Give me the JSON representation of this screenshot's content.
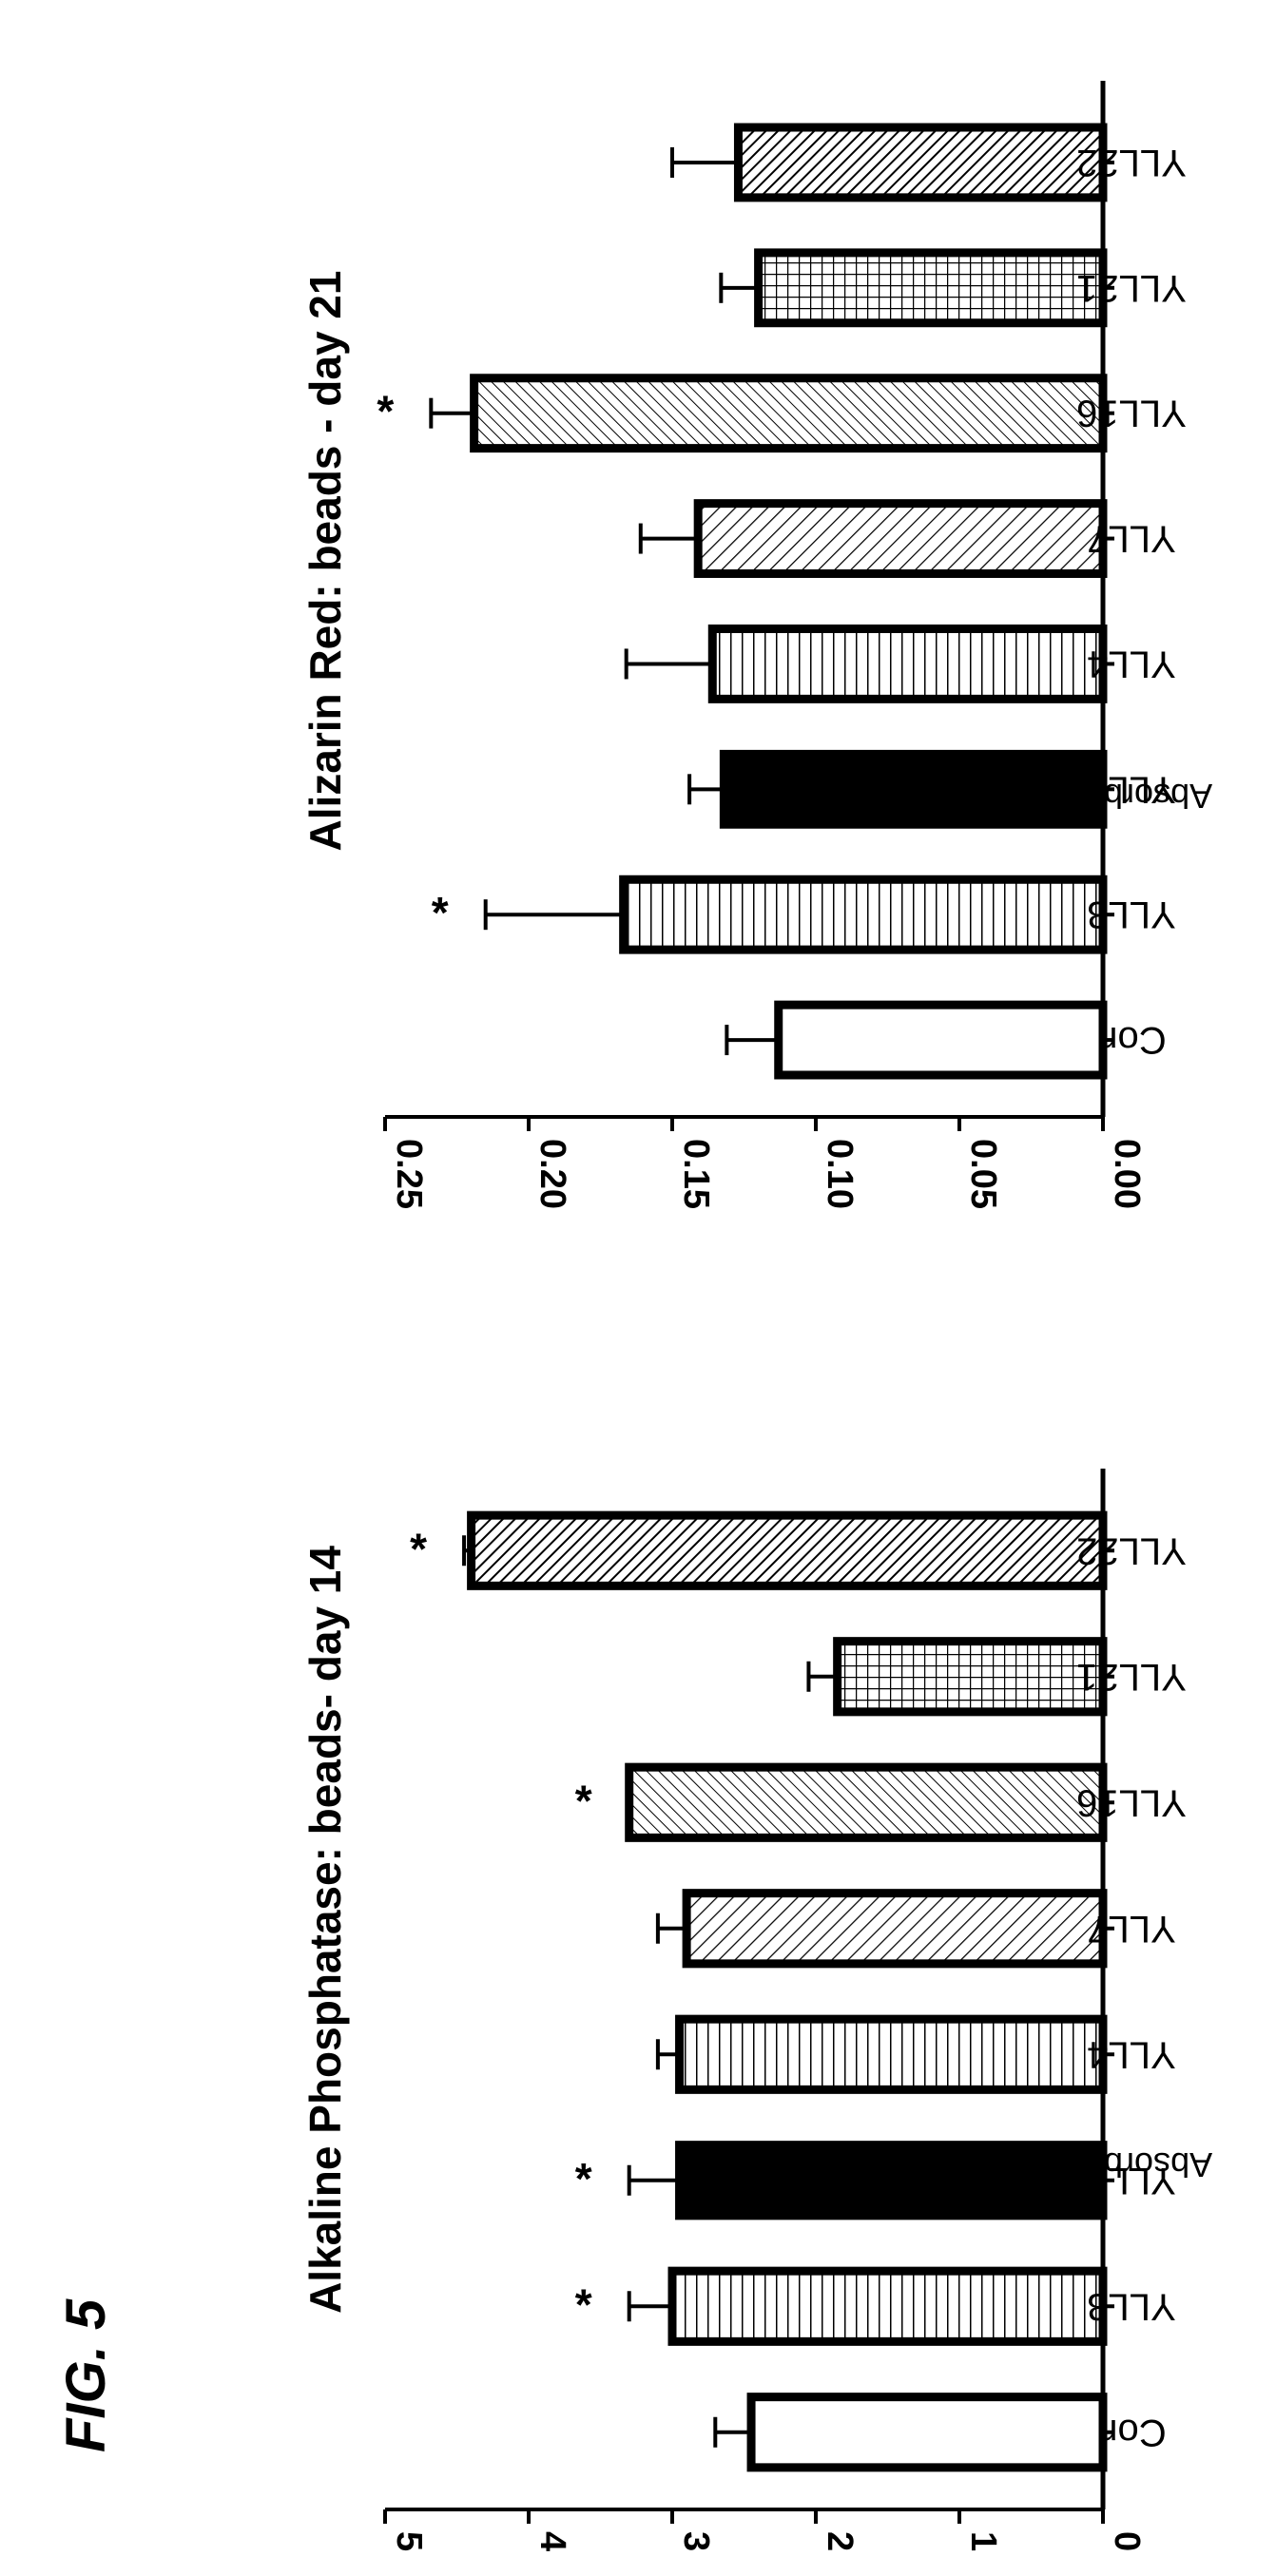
{
  "figure_label": "FIG. 5",
  "colors": {
    "ink": "#000000",
    "paper": "#ffffff"
  },
  "chart_data": [
    {
      "type": "bar",
      "title": "Alkaline Phosphatase: beads- day 14",
      "xlabel": "",
      "ylabel": "Absorbance (O.D. 405 nm)",
      "categories": [
        "Con",
        "YLL3",
        "YLL8",
        "YLL4",
        "YLL7",
        "YLL16",
        "YLL21",
        "YLL22"
      ],
      "values": [
        2.45,
        3.0,
        2.95,
        2.95,
        2.9,
        3.3,
        1.85,
        4.4
      ],
      "errors": [
        0.25,
        0.3,
        0.35,
        0.15,
        0.2,
        0.0,
        0.2,
        0.05
      ],
      "significant": [
        false,
        true,
        true,
        false,
        false,
        true,
        false,
        true
      ],
      "significance_marker": "*",
      "fills": [
        "empty",
        "hlines",
        "solid",
        "hlines",
        "diag-rising",
        "diag-rising-fine",
        "grid",
        "diag-rising-dense"
      ],
      "ylim": [
        0,
        5
      ],
      "yticks": [
        0,
        1,
        2,
        3,
        4,
        5
      ],
      "ytick_labels": [
        "0",
        "1",
        "2",
        "3",
        "4",
        "5"
      ],
      "grid": false,
      "orientation": "rotated 90 degrees clockwise"
    },
    {
      "type": "bar",
      "title": "Alizarin Red: beads - day 21",
      "xlabel": "",
      "ylabel": "Absorbance (O.D. 405 nm)",
      "categories": [
        "Con",
        "YLL3",
        "YLL8",
        "YLL4",
        "YLL7",
        "YLL16",
        "YLL21",
        "YLL22"
      ],
      "values": [
        0.113,
        0.167,
        0.132,
        0.136,
        0.141,
        0.219,
        0.12,
        0.127
      ],
      "errors": [
        0.018,
        0.048,
        0.012,
        0.03,
        0.02,
        0.015,
        0.013,
        0.023
      ],
      "significant": [
        false,
        true,
        false,
        false,
        false,
        true,
        false,
        false
      ],
      "significance_marker": "*",
      "fills": [
        "empty",
        "hlines",
        "solid",
        "hlines",
        "diag-rising",
        "diag-rising-fine",
        "grid",
        "diag-rising-dense"
      ],
      "ylim": [
        0,
        0.25
      ],
      "yticks": [
        0,
        0.05,
        0.1,
        0.15,
        0.2,
        0.25
      ],
      "ytick_labels": [
        "0.00",
        "0.05",
        "0.10",
        "0.15",
        "0.20",
        "0.25"
      ],
      "grid": false,
      "orientation": "rotated 90 degrees clockwise"
    }
  ]
}
